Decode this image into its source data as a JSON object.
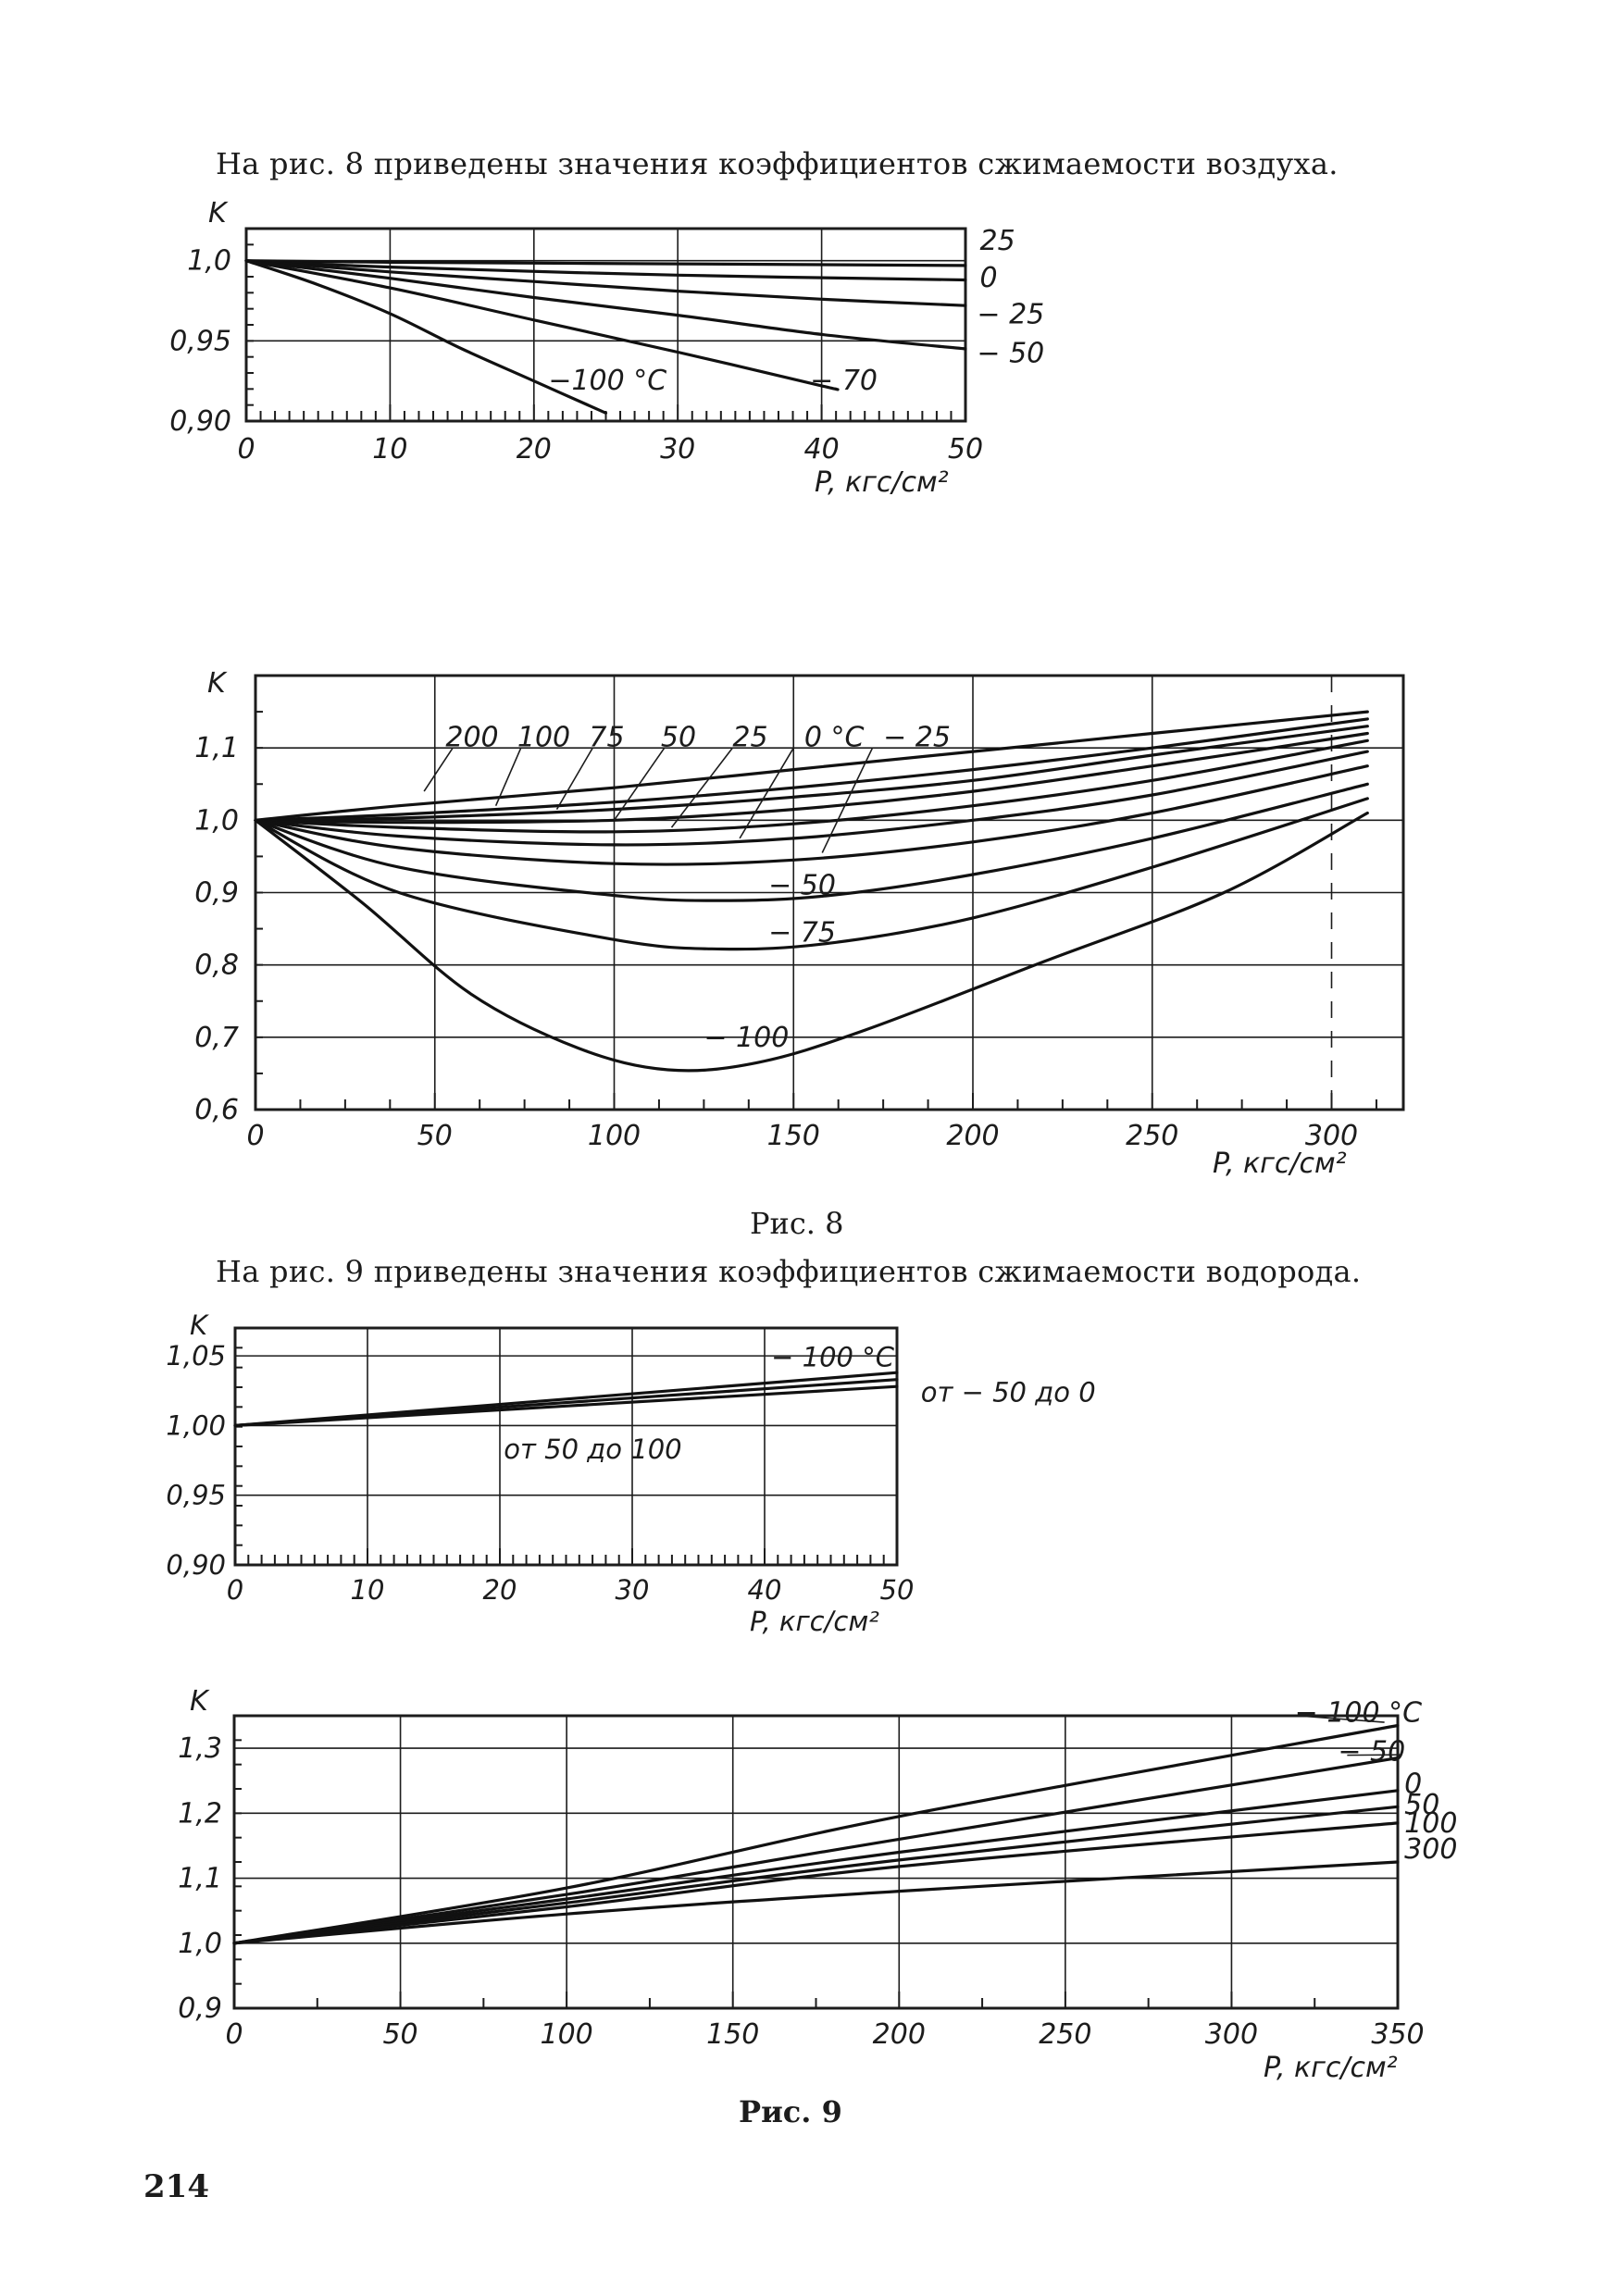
{
  "page": {
    "intro_fig8": "На рис. 8 приведены значения коэффициентов сжимаемости воздуха.",
    "caption_fig8": "Рис. 8",
    "intro_fig9": "На рис. 9 приведены значения коэффициентов сжимаемости водорода.",
    "caption_fig9": "Рис. 9",
    "page_number": "214"
  },
  "chart_data": [
    {
      "id": "air-low",
      "type": "line",
      "title": "",
      "ylabel": "K",
      "xlabel": "P, кгс/см²",
      "xlim": [
        0,
        50
      ],
      "ylim": [
        0.9,
        1.02
      ],
      "x_ticks": [
        "0",
        "10",
        "20",
        "30",
        "40",
        "50"
      ],
      "y_ticks": [
        {
          "v": 1.0,
          "label": "1,0"
        },
        {
          "v": 0.95,
          "label": "0,95"
        },
        {
          "v": 0.9,
          "label": "0,90"
        }
      ],
      "series": [
        {
          "name": "25",
          "points": [
            [
              0,
              1.0
            ],
            [
              10,
              0.999
            ],
            [
              30,
              0.998
            ],
            [
              50,
              0.997
            ]
          ]
        },
        {
          "name": "0",
          "points": [
            [
              0,
              1.0
            ],
            [
              10,
              0.996
            ],
            [
              30,
              0.991
            ],
            [
              50,
              0.988
            ]
          ]
        },
        {
          "name": "−25",
          "points": [
            [
              0,
              1.0
            ],
            [
              10,
              0.993
            ],
            [
              20,
              0.987
            ],
            [
              30,
              0.981
            ],
            [
              40,
              0.976
            ],
            [
              50,
              0.972
            ]
          ]
        },
        {
          "name": "−50",
          "points": [
            [
              0,
              1.0
            ],
            [
              10,
              0.989
            ],
            [
              20,
              0.977
            ],
            [
              30,
              0.966
            ],
            [
              40,
              0.954
            ],
            [
              50,
              0.945
            ]
          ]
        },
        {
          "name": "−70",
          "points": [
            [
              0,
              1.0
            ],
            [
              10,
              0.983
            ],
            [
              20,
              0.963
            ],
            [
              30,
              0.943
            ],
            [
              40,
              0.922
            ],
            [
              41,
              0.92
            ]
          ]
        },
        {
          "name": "−100 °C",
          "points": [
            [
              0,
              1.0
            ],
            [
              5,
              0.985
            ],
            [
              10,
              0.967
            ],
            [
              15,
              0.945
            ],
            [
              20,
              0.925
            ],
            [
              25,
              0.905
            ]
          ]
        }
      ],
      "labels": [
        {
          "text": "25",
          "x": 51.0,
          "y": 1.0125
        },
        {
          "text": "0",
          "x": 51.0,
          "y": 0.9895
        },
        {
          "text": "− 25",
          "x": 50.8,
          "y": 0.9665
        },
        {
          "text": "− 50",
          "x": 50.8,
          "y": 0.9425
        },
        {
          "text": "− 70",
          "x": 39.2,
          "y": 0.9255
        },
        {
          "text": "−100 °C",
          "x": 21.0,
          "y": 0.9255
        }
      ]
    },
    {
      "id": "air-high",
      "type": "line",
      "title": "",
      "ylabel": "K",
      "xlabel": "P, кгс/см²",
      "xlim": [
        0,
        320
      ],
      "ylim": [
        0.6,
        1.2
      ],
      "x_ticks": [
        "0",
        "50",
        "100",
        "150",
        "200",
        "250",
        "300"
      ],
      "y_ticks": [
        {
          "v": 1.1,
          "label": "1,1"
        },
        {
          "v": 1.0,
          "label": "1,0"
        },
        {
          "v": 0.9,
          "label": "0,9"
        },
        {
          "v": 0.8,
          "label": "0,8"
        },
        {
          "v": 0.7,
          "label": "0,7"
        },
        {
          "v": 0.6,
          "label": "0,6"
        }
      ],
      "series": [
        {
          "name": "200",
          "points": [
            [
              0,
              1.0
            ],
            [
              40,
              1.02
            ],
            [
              100,
              1.045
            ],
            [
              150,
              1.07
            ],
            [
              200,
              1.095
            ],
            [
              250,
              1.12
            ],
            [
              310,
              1.15
            ]
          ]
        },
        {
          "name": "100",
          "points": [
            [
              0,
              1.0
            ],
            [
              40,
              1.008
            ],
            [
              100,
              1.025
            ],
            [
              150,
              1.045
            ],
            [
              200,
              1.07
            ],
            [
              250,
              1.1
            ],
            [
              310,
              1.14
            ]
          ]
        },
        {
          "name": "75",
          "points": [
            [
              0,
              1.0
            ],
            [
              40,
              1.003
            ],
            [
              100,
              1.015
            ],
            [
              150,
              1.032
            ],
            [
              200,
              1.055
            ],
            [
              250,
              1.09
            ],
            [
              310,
              1.13
            ]
          ]
        },
        {
          "name": "50",
          "points": [
            [
              0,
              1.0
            ],
            [
              40,
              0.997
            ],
            [
              100,
              1.0
            ],
            [
              150,
              1.015
            ],
            [
              200,
              1.04
            ],
            [
              250,
              1.075
            ],
            [
              310,
              1.12
            ]
          ]
        },
        {
          "name": "25",
          "points": [
            [
              0,
              1.0
            ],
            [
              40,
              0.99
            ],
            [
              100,
              0.984
            ],
            [
              150,
              0.995
            ],
            [
              200,
              1.02
            ],
            [
              250,
              1.055
            ],
            [
              310,
              1.11
            ]
          ]
        },
        {
          "name": "0 °C",
          "points": [
            [
              0,
              1.0
            ],
            [
              40,
              0.978
            ],
            [
              100,
              0.966
            ],
            [
              150,
              0.975
            ],
            [
              200,
              1.0
            ],
            [
              250,
              1.035
            ],
            [
              310,
              1.095
            ]
          ]
        },
        {
          "name": "−25",
          "points": [
            [
              0,
              1.0
            ],
            [
              40,
              0.962
            ],
            [
              100,
              0.94
            ],
            [
              150,
              0.945
            ],
            [
              200,
              0.97
            ],
            [
              250,
              1.01
            ],
            [
              310,
              1.075
            ]
          ]
        },
        {
          "name": "−50",
          "points": [
            [
              0,
              1.0
            ],
            [
              40,
              0.935
            ],
            [
              100,
              0.896
            ],
            [
              130,
              0.889
            ],
            [
              160,
              0.896
            ],
            [
              200,
              0.925
            ],
            [
              250,
              0.975
            ],
            [
              310,
              1.05
            ]
          ]
        },
        {
          "name": "−75",
          "points": [
            [
              0,
              1.0
            ],
            [
              40,
              0.9
            ],
            [
              100,
              0.835
            ],
            [
              130,
              0.822
            ],
            [
              160,
              0.83
            ],
            [
              200,
              0.865
            ],
            [
              250,
              0.935
            ],
            [
              310,
              1.03
            ]
          ]
        },
        {
          "name": "−100",
          "points": [
            [
              0,
              1.0
            ],
            [
              30,
              0.885
            ],
            [
              60,
              0.76
            ],
            [
              90,
              0.685
            ],
            [
              115,
              0.655
            ],
            [
              140,
              0.665
            ],
            [
              170,
              0.71
            ],
            [
              220,
              0.805
            ],
            [
              270,
              0.9
            ],
            [
              310,
              1.01
            ]
          ]
        }
      ],
      "labels": [
        {
          "text": "200",
          "x": 53,
          "y": 1.115,
          "lx": 55,
          "ly": 1.1,
          "tx": 47,
          "ty": 1.04
        },
        {
          "text": "100",
          "x": 73,
          "y": 1.115,
          "lx": 74,
          "ly": 1.1,
          "tx": 67,
          "ty": 1.02
        },
        {
          "text": "75",
          "x": 93,
          "y": 1.115,
          "lx": 94,
          "ly": 1.1,
          "tx": 84,
          "ty": 1.015
        },
        {
          "text": "50",
          "x": 113,
          "y": 1.115,
          "lx": 114,
          "ly": 1.1,
          "tx": 100,
          "ty": 1.0
        },
        {
          "text": "25",
          "x": 133,
          "y": 1.115,
          "lx": 133,
          "ly": 1.1,
          "tx": 116,
          "ty": 0.99
        },
        {
          "text": "0 °C",
          "x": 153,
          "y": 1.115,
          "lx": 150,
          "ly": 1.1,
          "tx": 135,
          "ty": 0.975
        },
        {
          "text": "− 25",
          "x": 175,
          "y": 1.115,
          "lx": 172,
          "ly": 1.1,
          "tx": 158,
          "ty": 0.955
        },
        {
          "text": "− 50",
          "x": 143,
          "y": 0.91
        },
        {
          "text": "− 75",
          "x": 143,
          "y": 0.845
        },
        {
          "text": "− 100",
          "x": 125,
          "y": 0.7
        }
      ]
    },
    {
      "id": "hydrogen-low",
      "type": "line",
      "title": "",
      "ylabel": "K",
      "xlabel": "P, кгс/см²",
      "xlim": [
        0,
        50
      ],
      "ylim": [
        0.9,
        1.07
      ],
      "x_ticks": [
        "0",
        "10",
        "20",
        "30",
        "40",
        "50"
      ],
      "y_ticks": [
        {
          "v": 1.05,
          "label": "1,05"
        },
        {
          "v": 1.0,
          "label": "1,00"
        },
        {
          "v": 0.95,
          "label": "0,95"
        },
        {
          "v": 0.9,
          "label": "0,90"
        }
      ],
      "series": [
        {
          "name": "−100 °C",
          "points": [
            [
              0,
              1.0
            ],
            [
              50,
              1.038
            ]
          ]
        },
        {
          "name": "от −50 до 0",
          "points": [
            [
              0,
              1.0
            ],
            [
              50,
              1.033
            ]
          ]
        },
        {
          "name": "от 50 до 100",
          "points": [
            [
              0,
              1.0
            ],
            [
              50,
              1.028
            ]
          ]
        }
      ],
      "labels": [
        {
          "text": "− 100 °C",
          "x": 40.5,
          "y": 1.049
        },
        {
          "text": "от − 50 до 0",
          "x": 51.8,
          "y": 1.024
        },
        {
          "text": "от 50 до 100",
          "x": 20.3,
          "y": 0.983
        }
      ]
    },
    {
      "id": "hydrogen-high",
      "type": "line",
      "title": "",
      "ylabel": "K",
      "xlabel": "P, кгс/см²",
      "xlim": [
        0,
        350
      ],
      "ylim": [
        0.9,
        1.35
      ],
      "x_ticks": [
        "0",
        "50",
        "100",
        "150",
        "200",
        "250",
        "300",
        "350"
      ],
      "y_ticks": [
        {
          "v": 1.3,
          "label": "1,3"
        },
        {
          "v": 1.2,
          "label": "1,2"
        },
        {
          "v": 1.1,
          "label": "1,1"
        },
        {
          "v": 1.0,
          "label": "1,0"
        },
        {
          "v": 0.9,
          "label": "0,9"
        }
      ],
      "series": [
        {
          "name": "−100 °C",
          "points": [
            [
              0,
              1.0
            ],
            [
              100,
              1.085
            ],
            [
              200,
              1.195
            ],
            [
              350,
              1.335
            ]
          ]
        },
        {
          "name": "−50",
          "points": [
            [
              0,
              1.0
            ],
            [
              100,
              1.075
            ],
            [
              200,
              1.16
            ],
            [
              350,
              1.285
            ]
          ]
        },
        {
          "name": "0",
          "points": [
            [
              0,
              1.0
            ],
            [
              100,
              1.068
            ],
            [
              200,
              1.14
            ],
            [
              350,
              1.235
            ]
          ]
        },
        {
          "name": "50",
          "points": [
            [
              0,
              1.0
            ],
            [
              100,
              1.062
            ],
            [
              200,
              1.128
            ],
            [
              350,
              1.21
            ]
          ]
        },
        {
          "name": "100",
          "points": [
            [
              0,
              1.0
            ],
            [
              100,
              1.056
            ],
            [
              200,
              1.118
            ],
            [
              350,
              1.185
            ]
          ]
        },
        {
          "name": "300",
          "points": [
            [
              0,
              1.0
            ],
            [
              100,
              1.045
            ],
            [
              200,
              1.08
            ],
            [
              350,
              1.125
            ]
          ]
        }
      ],
      "labels": [
        {
          "text": "− 100 °C",
          "x": 319,
          "y": 1.355,
          "lx": 346,
          "ly": 1.34
        },
        {
          "text": "− 50",
          "x": 332,
          "y": 1.295,
          "lx": 351,
          "ly": 1.29
        },
        {
          "text": "0",
          "x": 352,
          "y": 1.245
        },
        {
          "text": "50",
          "x": 352,
          "y": 1.213
        },
        {
          "text": "100",
          "x": 352,
          "y": 1.185
        },
        {
          "text": "300",
          "x": 352,
          "y": 1.145
        }
      ]
    }
  ]
}
